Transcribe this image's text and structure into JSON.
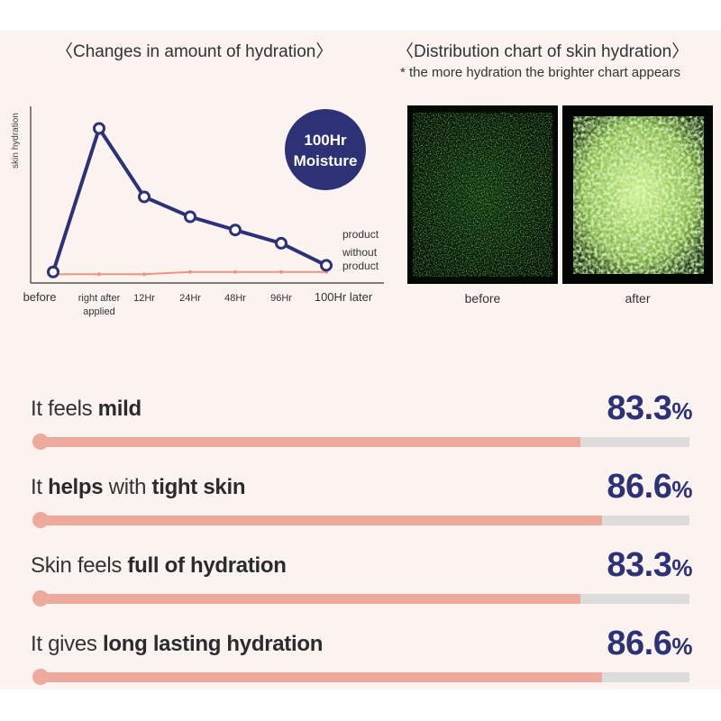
{
  "left_title": "〈Changes in amount of hydration〉",
  "right_title": "〈Distribution chart of skin hydration〉",
  "right_note": "* the more hydration the brighter chart appears",
  "badge": {
    "line1": "100Hr",
    "line2": "Moisture"
  },
  "images": {
    "before_label": "before",
    "after_label": "after"
  },
  "colors": {
    "navy": "#2d3276",
    "salmon": "#f0947e",
    "bar_fill": "#eea99d",
    "bar_track": "#dedcdb",
    "background": "#fbf3f0"
  },
  "chart_data": {
    "type": "line",
    "ylabel": "skin hydration",
    "categories": [
      "before",
      "right after applied",
      "12Hr",
      "24Hr",
      "48Hr",
      "96Hr",
      "100Hr later"
    ],
    "series": [
      {
        "name": "product",
        "values": [
          5,
          70,
          39,
          30,
          24,
          18,
          8
        ],
        "color": "#2d3276"
      },
      {
        "name": "without product",
        "values": [
          4,
          4,
          4,
          5,
          5,
          5,
          5
        ],
        "color": "#f0947e"
      }
    ],
    "ylim": [
      0,
      80
    ],
    "legend_position": "right"
  },
  "survey": [
    {
      "parts": [
        "It feels ",
        "mild"
      ],
      "value": 83.3,
      "display": "83.3"
    },
    {
      "parts": [
        "It ",
        "helps",
        " with ",
        "tight skin"
      ],
      "value": 86.6,
      "display": "86.6"
    },
    {
      "parts": [
        "Skin feels ",
        "full of hydration"
      ],
      "value": 83.3,
      "display": "83.3"
    },
    {
      "parts": [
        "It gives ",
        "long lasting hydration"
      ],
      "value": 86.6,
      "display": "86.6"
    }
  ],
  "percent_unit": "%"
}
